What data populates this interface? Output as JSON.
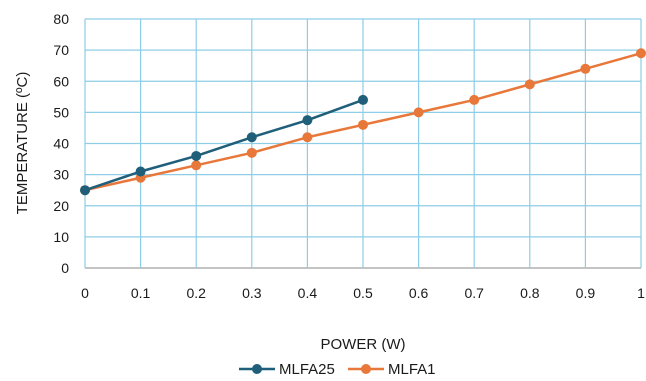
{
  "chart_data": {
    "type": "line",
    "xlabel": "POWER (W)",
    "ylabel": "TEMPERATURE (ºC)",
    "xlim": [
      0,
      1
    ],
    "ylim": [
      0,
      80
    ],
    "x_ticks": [
      "0",
      "0.1",
      "0.2",
      "0.3",
      "0.4",
      "0.5",
      "0.6",
      "0.7",
      "0.8",
      "0.9",
      "1"
    ],
    "y_ticks": [
      "0",
      "10",
      "20",
      "30",
      "40",
      "50",
      "60",
      "70",
      "80"
    ],
    "grid": true,
    "legend_position": "bottom",
    "series": [
      {
        "name": "MLFA25",
        "color": "#1f5f7a",
        "x": [
          0,
          0.1,
          0.2,
          0.3,
          0.4,
          0.5
        ],
        "y": [
          25,
          31,
          36,
          42,
          47.5,
          54
        ]
      },
      {
        "name": "MLFA1",
        "color": "#e8773a",
        "x": [
          0,
          0.1,
          0.2,
          0.3,
          0.4,
          0.5,
          0.6,
          0.7,
          0.8,
          0.9,
          1
        ],
        "y": [
          25,
          29,
          33,
          37,
          42,
          46,
          50,
          54,
          59,
          64,
          69
        ]
      }
    ]
  },
  "colors": {
    "grid": "#8ecde6",
    "axis": "#b0b0b0"
  }
}
